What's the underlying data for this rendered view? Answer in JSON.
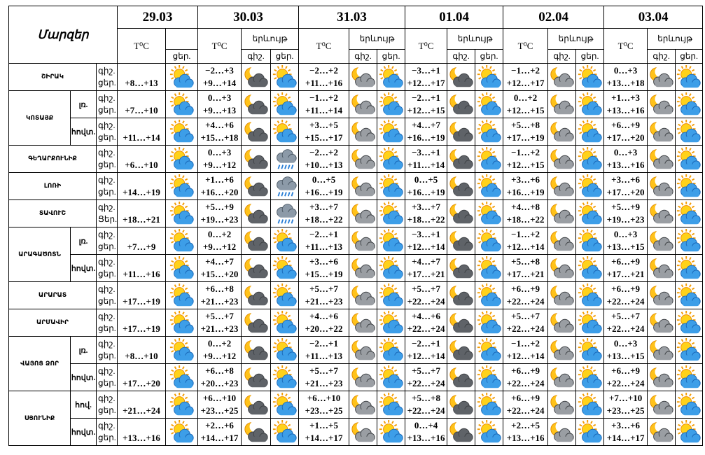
{
  "header": {
    "regions_label": "Մարզեր",
    "dates": [
      "29.03",
      "30.03",
      "31.03",
      "01.04",
      "02.04",
      "03.04"
    ],
    "temp_label": "T⁰C",
    "phenomenon_label": "երևույթ",
    "night_label": "գիշ.",
    "day_label": "ցեր."
  },
  "regions": [
    {
      "name": "ՇԻՐԱԿ",
      "rows": [
        {
          "times": [
            "գիշ.",
            "ցեր."
          ],
          "first_day": "+8…+13",
          "days": [
            [
              "−2…+3",
              "+9…+14"
            ],
            [
              "−2…+2",
              "+11…+16"
            ],
            [
              "−3…+1",
              "+12…+17"
            ],
            [
              "−1…+2",
              "+12…+17"
            ],
            [
              "0…+3",
              "+13…+18"
            ]
          ]
        }
      ]
    },
    {
      "name": "ԿՈՏԱՅՔ",
      "rows": [
        {
          "zone": "լռ.",
          "times": [
            "գիշ.",
            "ցեր."
          ],
          "first_day": "+7…+10",
          "days": [
            [
              "0…+3",
              "+9…+13"
            ],
            [
              "−1…+2",
              "+11…+14"
            ],
            [
              "−2…+1",
              "+12…+15"
            ],
            [
              "0…+2",
              "+12…+15"
            ],
            [
              "+1…+3",
              "+13…+16"
            ]
          ]
        },
        {
          "zone": "հովտ.",
          "times": [
            "գիշ.",
            "ցեր."
          ],
          "first_day": "+11…+14",
          "days": [
            [
              "+4…+6",
              "+15…+18"
            ],
            [
              "+3…+5",
              "+15…+17"
            ],
            [
              "+4…+7",
              "+16…+19"
            ],
            [
              "+5…+8",
              "+17…+19"
            ],
            [
              "+6…+9",
              "+17…+20"
            ]
          ]
        }
      ]
    },
    {
      "name": "ԳԵՂԱՐՔՈՒՆԻՔ",
      "rows": [
        {
          "times": [
            "գիշ.",
            "ցեր."
          ],
          "first_day": "+6…+10",
          "days": [
            [
              "0…+3",
              "+9…+12"
            ],
            [
              "−2…+2",
              "+10…+13"
            ],
            [
              "−3…+1",
              "+11…+14"
            ],
            [
              "−1…+2",
              "+12…+15"
            ],
            [
              "0…+3",
              "+13…+16"
            ]
          ]
        }
      ]
    },
    {
      "name": "ԼՈՌԻ",
      "rows": [
        {
          "times": [
            "գիշ.",
            "ցեր."
          ],
          "first_day": "+14…+19",
          "days": [
            [
              "+1…+6",
              "+16…+20"
            ],
            [
              "0…+5",
              "+16…+19"
            ],
            [
              "0…+5",
              "+16…+19"
            ],
            [
              "+3…+6",
              "+16…+19"
            ],
            [
              "+3…+6",
              "+17…+20"
            ]
          ]
        }
      ]
    },
    {
      "name": "ՏԱՎՈՒՇ",
      "rows": [
        {
          "times": [
            "գիշ.",
            "Ցեր."
          ],
          "first_day": "+18…+21",
          "days": [
            [
              "+5…+9",
              "+19…+23"
            ],
            [
              "+3…+7",
              "+18…+22"
            ],
            [
              "+3…+7",
              "+18…+22"
            ],
            [
              "+4…+8",
              "+18…+22"
            ],
            [
              "+5…+9",
              "+19…+23"
            ]
          ]
        }
      ]
    },
    {
      "name": "ԱՐԱԳԱԾՈՏՆ",
      "rows": [
        {
          "zone": "լռ.",
          "times": [
            "գիշ.",
            "ցեր."
          ],
          "first_day": "+7…+9",
          "days": [
            [
              "0…+2",
              "+9…+12"
            ],
            [
              "−2…+1",
              "+11…+13"
            ],
            [
              "−3…+1",
              "+12…+14"
            ],
            [
              "−1…+2",
              "+12…+14"
            ],
            [
              "0…+3",
              "+13…+15"
            ]
          ]
        },
        {
          "zone": "հովտ.",
          "times": [
            "գիշ.",
            "ցեր."
          ],
          "first_day": "+11…+16",
          "days": [
            [
              "+4…+7",
              "+15…+20"
            ],
            [
              "+3…+6",
              "+15…+19"
            ],
            [
              "+4…+7",
              "+17…+21"
            ],
            [
              "+5…+8",
              "+17…+21"
            ],
            [
              "+6…+9",
              "+17…+21"
            ]
          ]
        }
      ]
    },
    {
      "name": "ԱՐԱՐԱՏ",
      "rows": [
        {
          "times": [
            "գիշ.",
            "ցեր."
          ],
          "first_day": "+17…+19",
          "days": [
            [
              "+6…+8",
              "+21…+23"
            ],
            [
              "+5…+7",
              "+21…+23"
            ],
            [
              "+5…+7",
              "+22…+24"
            ],
            [
              "+6…+9",
              "+22…+24"
            ],
            [
              "+6…+9",
              "+22…+24"
            ]
          ]
        }
      ]
    },
    {
      "name": "ԱՐՄԱՎԻՐ",
      "rows": [
        {
          "times": [
            "գիշ.",
            "ցեր."
          ],
          "first_day": "+17…+19",
          "days": [
            [
              "+5…+7",
              "+21…+23"
            ],
            [
              "+4…+6",
              "+20…+22"
            ],
            [
              "+4…+6",
              "+22…+24"
            ],
            [
              "+5…+7",
              "+22…+24"
            ],
            [
              "+5…+7",
              "+22…+24"
            ]
          ]
        }
      ]
    },
    {
      "name": "ՎԱՅՈՑ ՁՈՐ",
      "rows": [
        {
          "zone": "լռ.",
          "times": [
            "գիշ.",
            "ցեր."
          ],
          "first_day": "+8…+10",
          "days": [
            [
              "0…+2",
              "+9…+12"
            ],
            [
              "−2…+1",
              "+11…+13"
            ],
            [
              "−2…+1",
              "+12…+14"
            ],
            [
              "−1…+2",
              "+12…+14"
            ],
            [
              "0…+3",
              "+13…+15"
            ]
          ]
        },
        {
          "zone": "հովտ.",
          "times": [
            "գիշ.",
            "ցեր."
          ],
          "first_day": "+17…+20",
          "days": [
            [
              "+6…+8",
              "+20…+23"
            ],
            [
              "+5…+7",
              "+21…+23"
            ],
            [
              "+5…+7",
              "+22…+24"
            ],
            [
              "+6…+9",
              "+22…+24"
            ],
            [
              "+6…+9",
              "+22…+24"
            ]
          ]
        }
      ]
    },
    {
      "name": "ՍՅՈՒՆԻՔ",
      "rows": [
        {
          "zone": "հով.",
          "times": [
            "գիշ.",
            "ցեր."
          ],
          "first_day": "+21…+24",
          "days": [
            [
              "+6…+10",
              "+23…+25"
            ],
            [
              "+6…+10",
              "+23…+25"
            ],
            [
              "+5…+8",
              "+22…+24"
            ],
            [
              "+6…+9",
              "+22…+24"
            ],
            [
              "+7…+10",
              "+23…+25"
            ]
          ]
        },
        {
          "zone": "հովտ.",
          "times": [
            "գիշ.",
            "ցեր."
          ],
          "first_day": "+13…+16",
          "days": [
            [
              "+2…+6",
              "+14…+17"
            ],
            [
              "+1…+5",
              "+14…+17"
            ],
            [
              "0…+4",
              "+13…+16"
            ],
            [
              "+2…+5",
              "+13…+16"
            ],
            [
              "+3…+6",
              "+14…+17"
            ]
          ]
        }
      ]
    }
  ]
}
